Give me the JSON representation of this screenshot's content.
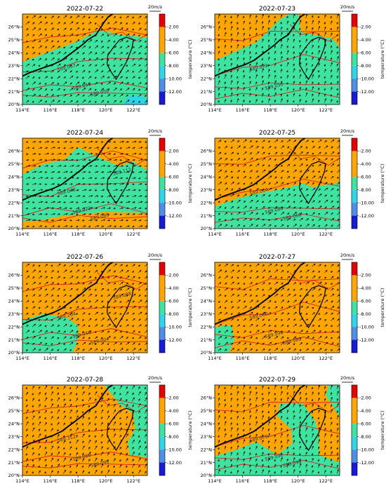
{
  "chart_data": {
    "type": "map",
    "colorbar": {
      "label": "temperature (°C)",
      "ticks": [
        "-2.00",
        "-4.00",
        "-6.00",
        "-8.00",
        "-10.00",
        "-12.00"
      ],
      "ranges": [
        [
          -2,
          0
        ],
        [
          -4,
          -2
        ],
        [
          -6,
          -4
        ],
        [
          -8,
          -6
        ],
        [
          -10,
          -8
        ],
        [
          -12,
          -10
        ],
        [
          -14,
          -12
        ]
      ],
      "colors": [
        "#e60000",
        "#ffa500",
        "#ffa500",
        "#3ee3a0",
        "#2fd6e8",
        "#4f8fe6",
        "#1a1ad6"
      ]
    },
    "quiver_key": "20m/s",
    "lon_ticks": [
      "114°E",
      "116°E",
      "118°E",
      "120°E",
      "122°E"
    ],
    "lat_ticks": [
      "20°N",
      "21°N",
      "22°N",
      "23°N",
      "24°N",
      "25°N",
      "26°N"
    ],
    "lon_range": [
      114,
      123
    ],
    "lat_range": [
      20,
      27
    ],
    "colors": {
      "warm": "#ffa500",
      "cool": "#3ee3a0",
      "cold": "#2fd6e8",
      "contour": "#e0201c",
      "coast": "#000000",
      "vector": "#111111"
    },
    "panels": [
      {
        "title": "2022-07-22",
        "contours": [
          "589.037",
          "589.056",
          "589.050"
        ],
        "wind_dir": "SW",
        "cool_region": [
          [
            114,
            23.3
          ],
          [
            116,
            24.1
          ],
          [
            118,
            24.9
          ],
          [
            119.5,
            25.8
          ],
          [
            121,
            25.4
          ],
          [
            123,
            25.2
          ],
          [
            123,
            20
          ],
          [
            114,
            20
          ]
        ],
        "cold_region": [
          [
            121.3,
            20
          ],
          [
            121.6,
            20.6
          ],
          [
            122.4,
            20.7
          ],
          [
            123,
            20.4
          ],
          [
            123,
            20
          ]
        ]
      },
      {
        "title": "2022-07-23",
        "contours": [
          "589.072",
          "589.056"
        ],
        "wind_dir": "S",
        "cool_region": [
          [
            114,
            20
          ],
          [
            114,
            23.4
          ],
          [
            115.5,
            24.1
          ],
          [
            117,
            24.8
          ],
          [
            118.7,
            26.6
          ],
          [
            119.4,
            27
          ],
          [
            120,
            27
          ],
          [
            120.2,
            25.6
          ],
          [
            122.5,
            25.1
          ],
          [
            123,
            24.4
          ],
          [
            123,
            20
          ]
        ],
        "cold_region": []
      },
      {
        "title": "2022-07-24",
        "contours": [
          "589.040",
          "589.072",
          "589.088",
          "589.112"
        ],
        "wind_dir": "W",
        "cool_region": [
          [
            114,
            24.2
          ],
          [
            115.5,
            25
          ],
          [
            117,
            25.3
          ],
          [
            118,
            26.3
          ],
          [
            119.5,
            25.5
          ],
          [
            121,
            24.8
          ],
          [
            122,
            25.2
          ],
          [
            123,
            24.5
          ],
          [
            123,
            21.2
          ],
          [
            120,
            21.3
          ],
          [
            117,
            21
          ],
          [
            115,
            20.6
          ],
          [
            114,
            20.6
          ]
        ],
        "cold_region": []
      },
      {
        "title": "2022-07-25",
        "contours": [
          "589.064",
          "589.080",
          "589.060"
        ],
        "wind_dir": "SW",
        "cool_region": [
          [
            114,
            20
          ],
          [
            114,
            21.7
          ],
          [
            115.5,
            22.3
          ],
          [
            117,
            22.7
          ],
          [
            119,
            23.1
          ],
          [
            120.4,
            23.5
          ],
          [
            121,
            23.2
          ],
          [
            123,
            23.6
          ],
          [
            123,
            20
          ]
        ],
        "cold_region": []
      },
      {
        "title": "2022-07-26",
        "contours": [
          "589.264",
          "589.048",
          "589.004",
          "589.088"
        ],
        "wind_dir": "SW",
        "cool_region": [
          [
            114,
            20
          ],
          [
            114,
            22.5
          ],
          [
            115.5,
            23
          ],
          [
            117.2,
            22.7
          ],
          [
            118,
            22.1
          ],
          [
            118,
            21
          ],
          [
            117.6,
            20
          ],
          [
            114,
            20
          ]
        ],
        "cold_region": []
      },
      {
        "title": "2022-07-27",
        "contours": [
          "589.080",
          "589.096",
          "589.080"
        ],
        "wind_dir": "SW",
        "cool_region": [
          [
            114,
            20
          ],
          [
            114,
            22
          ],
          [
            115.2,
            22.1
          ],
          [
            115.4,
            21
          ],
          [
            115,
            20
          ]
        ],
        "cold_region": []
      },
      {
        "title": "2022-07-28",
        "contours": [
          "589.112",
          "589.080",
          "589.096"
        ],
        "wind_dir": "SSW",
        "cool_region": [
          [
            119.9,
            27
          ],
          [
            121,
            25.5
          ],
          [
            122,
            24.8
          ],
          [
            122.1,
            23.6
          ],
          [
            121.6,
            22.6
          ],
          [
            121.7,
            21.6
          ],
          [
            123,
            21.4
          ],
          [
            123,
            27
          ]
        ],
        "cold_region": []
      },
      {
        "title": "2022-07-29",
        "contours": [
          "589.079",
          "589.096",
          "589.098"
        ],
        "wind_dir": "S",
        "cool_region": [
          [
            118.7,
            25.6
          ],
          [
            120.3,
            25.6
          ],
          [
            121.2,
            24.3
          ],
          [
            121.5,
            23.2
          ],
          [
            121.5,
            21.6
          ],
          [
            123,
            21
          ],
          [
            123,
            24.5
          ],
          [
            122,
            26.2
          ],
          [
            122.2,
            27
          ],
          [
            123,
            27
          ],
          [
            123,
            20
          ],
          [
            114,
            20
          ],
          [
            114,
            21.5
          ],
          [
            115.6,
            22
          ],
          [
            117,
            22.6
          ],
          [
            118.5,
            21.6
          ],
          [
            119.6,
            22.5
          ],
          [
            119.5,
            23.6
          ],
          [
            118.5,
            24.6
          ]
        ],
        "cold_region": []
      }
    ]
  }
}
